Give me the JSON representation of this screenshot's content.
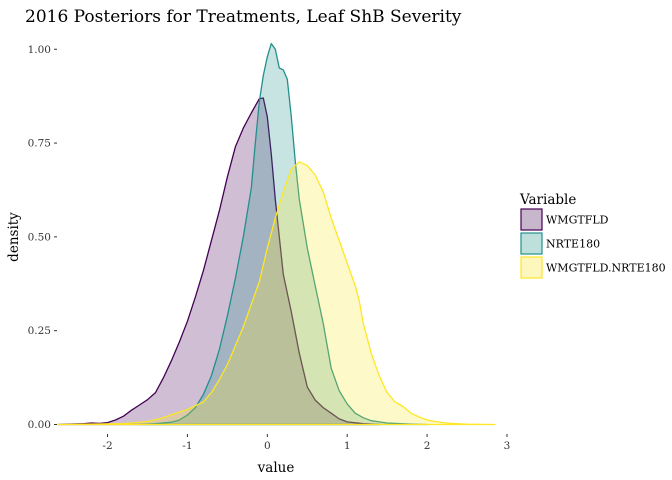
{
  "chart_data": {
    "type": "area",
    "title": "2016 Posteriors for Treatments, Leaf ShB Severity",
    "xlabel": "value",
    "ylabel": "density",
    "xlim": [
      -2.62,
      2.85
    ],
    "ylim": [
      -0.02,
      1.03
    ],
    "x_ticks": [
      -2,
      -1,
      0,
      1,
      2,
      3
    ],
    "y_ticks": [
      0.0,
      0.25,
      0.5,
      0.75,
      1.0
    ],
    "y_tick_labels": [
      "0.00",
      "0.25",
      "0.50",
      "0.75",
      "1.00"
    ],
    "grid": false,
    "legend": {
      "title": "Variable",
      "position": "right"
    },
    "series": [
      {
        "name": "WMGTFLD",
        "color": "#440154",
        "fill": "#c8b6cc",
        "points": [
          [
            -2.62,
            0.0
          ],
          [
            -2.3,
            0.002
          ],
          [
            -2.2,
            0.004
          ],
          [
            -2.1,
            0.003
          ],
          [
            -2.0,
            0.005
          ],
          [
            -1.9,
            0.012
          ],
          [
            -1.8,
            0.022
          ],
          [
            -1.7,
            0.038
          ],
          [
            -1.6,
            0.052
          ],
          [
            -1.5,
            0.066
          ],
          [
            -1.4,
            0.085
          ],
          [
            -1.3,
            0.125
          ],
          [
            -1.2,
            0.17
          ],
          [
            -1.1,
            0.22
          ],
          [
            -1.0,
            0.275
          ],
          [
            -0.9,
            0.34
          ],
          [
            -0.8,
            0.41
          ],
          [
            -0.7,
            0.49
          ],
          [
            -0.6,
            0.57
          ],
          [
            -0.5,
            0.66
          ],
          [
            -0.4,
            0.74
          ],
          [
            -0.3,
            0.79
          ],
          [
            -0.2,
            0.83
          ],
          [
            -0.1,
            0.868
          ],
          [
            -0.05,
            0.87
          ],
          [
            0.0,
            0.82
          ],
          [
            0.05,
            0.72
          ],
          [
            0.1,
            0.6
          ],
          [
            0.15,
            0.5
          ],
          [
            0.2,
            0.4
          ],
          [
            0.3,
            0.3
          ],
          [
            0.4,
            0.19
          ],
          [
            0.5,
            0.1
          ],
          [
            0.6,
            0.065
          ],
          [
            0.7,
            0.045
          ],
          [
            0.8,
            0.03
          ],
          [
            0.9,
            0.015
          ],
          [
            1.0,
            0.007
          ],
          [
            1.2,
            0.002
          ],
          [
            1.4,
            0.0
          ]
        ]
      },
      {
        "name": "NRTE180",
        "color": "#21908c",
        "fill": "#bee0dc",
        "points": [
          [
            -1.6,
            0.0
          ],
          [
            -1.4,
            0.002
          ],
          [
            -1.2,
            0.006
          ],
          [
            -1.1,
            0.012
          ],
          [
            -1.0,
            0.025
          ],
          [
            -0.9,
            0.045
          ],
          [
            -0.8,
            0.08
          ],
          [
            -0.7,
            0.13
          ],
          [
            -0.6,
            0.2
          ],
          [
            -0.5,
            0.29
          ],
          [
            -0.4,
            0.39
          ],
          [
            -0.3,
            0.5
          ],
          [
            -0.2,
            0.63
          ],
          [
            -0.15,
            0.75
          ],
          [
            -0.1,
            0.86
          ],
          [
            -0.05,
            0.93
          ],
          [
            0.0,
            0.98
          ],
          [
            0.05,
            1.015
          ],
          [
            0.1,
            1.0
          ],
          [
            0.15,
            0.95
          ],
          [
            0.2,
            0.945
          ],
          [
            0.25,
            0.92
          ],
          [
            0.3,
            0.82
          ],
          [
            0.35,
            0.7
          ],
          [
            0.4,
            0.6
          ],
          [
            0.5,
            0.47
          ],
          [
            0.6,
            0.37
          ],
          [
            0.7,
            0.27
          ],
          [
            0.8,
            0.15
          ],
          [
            0.9,
            0.09
          ],
          [
            1.0,
            0.055
          ],
          [
            1.1,
            0.03
          ],
          [
            1.2,
            0.018
          ],
          [
            1.3,
            0.01
          ],
          [
            1.5,
            0.004
          ],
          [
            1.8,
            0.001
          ],
          [
            2.0,
            0.0
          ]
        ]
      },
      {
        "name": "WMGTFLD.NRTE180",
        "color": "#fde725",
        "fill": "#fdf7be",
        "points": [
          [
            -2.62,
            0.0
          ],
          [
            -1.8,
            0.002
          ],
          [
            -1.5,
            0.008
          ],
          [
            -1.3,
            0.018
          ],
          [
            -1.2,
            0.026
          ],
          [
            -1.0,
            0.04
          ],
          [
            -0.9,
            0.05
          ],
          [
            -0.8,
            0.06
          ],
          [
            -0.7,
            0.085
          ],
          [
            -0.6,
            0.12
          ],
          [
            -0.5,
            0.16
          ],
          [
            -0.4,
            0.21
          ],
          [
            -0.3,
            0.26
          ],
          [
            -0.2,
            0.32
          ],
          [
            -0.1,
            0.38
          ],
          [
            0.0,
            0.47
          ],
          [
            0.1,
            0.55
          ],
          [
            0.2,
            0.62
          ],
          [
            0.3,
            0.68
          ],
          [
            0.4,
            0.7
          ],
          [
            0.5,
            0.69
          ],
          [
            0.6,
            0.665
          ],
          [
            0.7,
            0.62
          ],
          [
            0.8,
            0.55
          ],
          [
            0.9,
            0.49
          ],
          [
            1.0,
            0.43
          ],
          [
            1.1,
            0.37
          ],
          [
            1.15,
            0.33
          ],
          [
            1.2,
            0.27
          ],
          [
            1.3,
            0.19
          ],
          [
            1.4,
            0.13
          ],
          [
            1.5,
            0.085
          ],
          [
            1.6,
            0.06
          ],
          [
            1.7,
            0.048
          ],
          [
            1.8,
            0.03
          ],
          [
            1.9,
            0.02
          ],
          [
            2.0,
            0.012
          ],
          [
            2.1,
            0.008
          ],
          [
            2.2,
            0.005
          ],
          [
            2.3,
            0.003
          ],
          [
            2.5,
            0.001
          ],
          [
            2.85,
            0.0
          ]
        ]
      }
    ]
  }
}
